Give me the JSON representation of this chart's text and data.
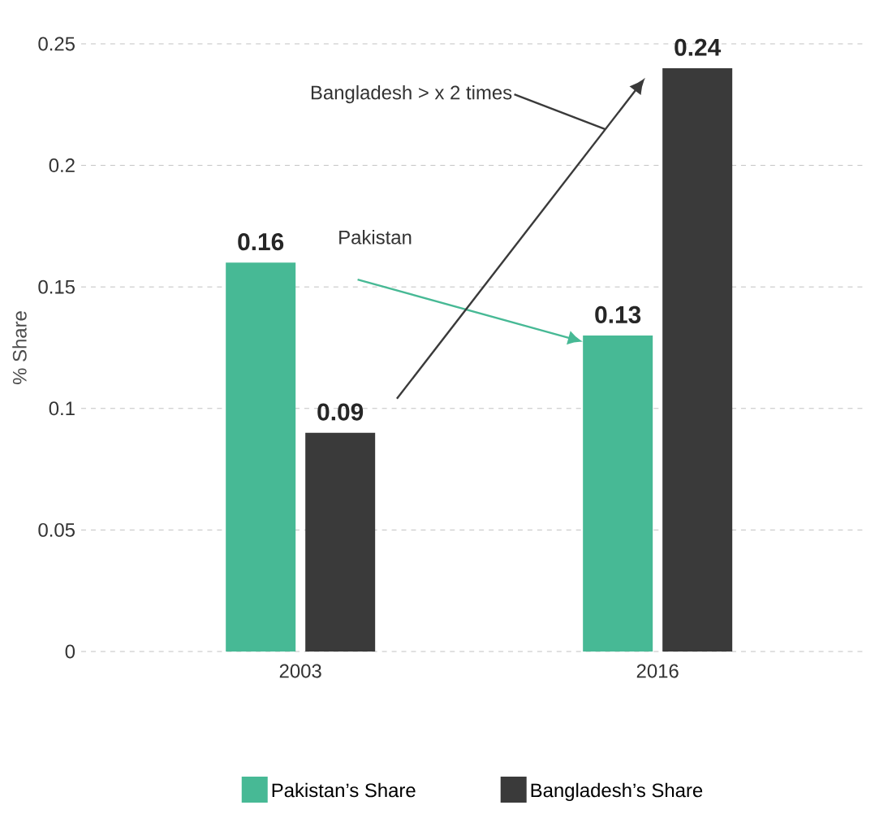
{
  "chart_data": {
    "type": "bar",
    "ylabel": "% Share",
    "categories": [
      "2003",
      "2016"
    ],
    "series": [
      {
        "name": "Pakistan’s Share",
        "color": "#47b995",
        "values": [
          0.16,
          0.13
        ],
        "value_labels": [
          "0.16",
          "0.13"
        ]
      },
      {
        "name": "Bangladesh’s Share",
        "color": "#3a3a3a",
        "values": [
          0.09,
          0.24
        ],
        "value_labels": [
          "0.09",
          "0.24"
        ]
      }
    ],
    "annotations": [
      "Pakistan",
      "Bangladesh > x 2 times"
    ],
    "ylim": [
      0,
      0.25
    ],
    "yticks": [
      0,
      0.05,
      0.1,
      0.15,
      0.2,
      0.25
    ],
    "grid": "y",
    "legend": "bottom"
  }
}
